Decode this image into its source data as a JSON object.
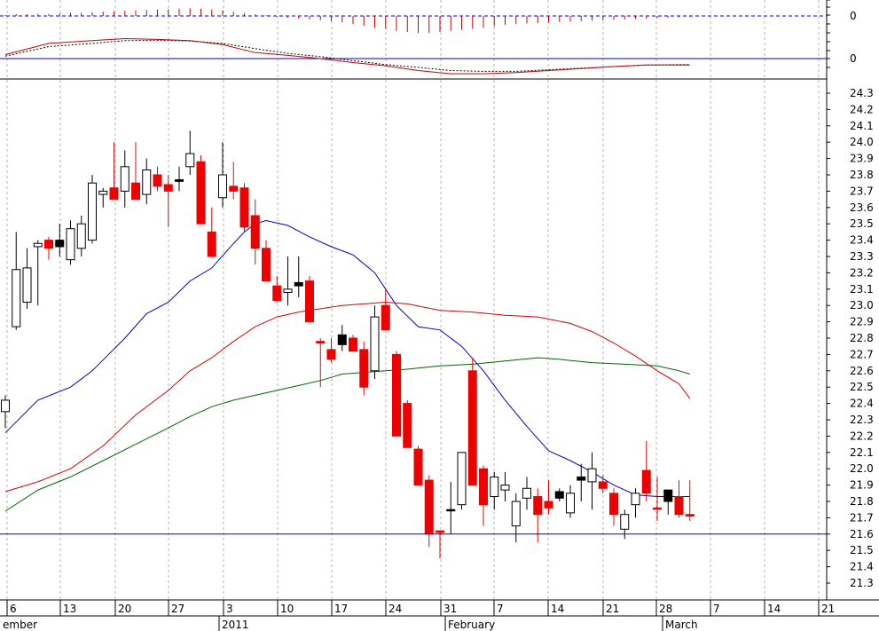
{
  "chart_data": {
    "type": "candlestick",
    "price_axis": {
      "ylim": [
        21.22,
        24.33
      ],
      "ticks": [
        21.3,
        21.4,
        21.5,
        21.6,
        21.7,
        21.8,
        21.9,
        22.0,
        22.1,
        22.2,
        22.3,
        22.4,
        22.5,
        22.6,
        22.7,
        22.8,
        22.9,
        23.0,
        23.1,
        23.2,
        23.3,
        23.4,
        23.5,
        23.6,
        23.7,
        23.8,
        23.9,
        24.0,
        24.1,
        24.2,
        24.3
      ],
      "reference_line": 21.6
    },
    "indicator_panel": {
      "labels": [
        "0",
        "0"
      ],
      "zero_line": 0
    },
    "x_axis": {
      "day_ticks": [
        "6",
        "13",
        "20",
        "27",
        "3",
        "10",
        "17",
        "24",
        "31",
        "7",
        "14",
        "21",
        "28",
        "7",
        "14",
        "21"
      ],
      "period_labels": [
        "ember",
        "2011",
        "February",
        "March"
      ]
    },
    "candles": [
      {
        "o": 22.35,
        "h": 22.45,
        "l": 22.25,
        "c": 22.42,
        "color": "white"
      },
      {
        "o": 22.87,
        "h": 23.45,
        "l": 22.85,
        "c": 23.22,
        "color": "white"
      },
      {
        "o": 23.02,
        "h": 23.35,
        "l": 22.98,
        "c": 23.23,
        "color": "white"
      },
      {
        "o": 23.36,
        "h": 23.4,
        "l": 23.0,
        "c": 23.38,
        "color": "white"
      },
      {
        "o": 23.4,
        "h": 23.42,
        "l": 23.28,
        "c": 23.35,
        "color": "red"
      },
      {
        "o": 23.36,
        "h": 23.5,
        "l": 23.3,
        "c": 23.4,
        "color": "black"
      },
      {
        "o": 23.28,
        "h": 23.52,
        "l": 23.25,
        "c": 23.47,
        "color": "white"
      },
      {
        "o": 23.35,
        "h": 23.55,
        "l": 23.3,
        "c": 23.5,
        "color": "white"
      },
      {
        "o": 23.4,
        "h": 23.8,
        "l": 23.38,
        "c": 23.75,
        "color": "white"
      },
      {
        "o": 23.68,
        "h": 23.72,
        "l": 23.6,
        "c": 23.7,
        "color": "white"
      },
      {
        "o": 23.72,
        "h": 24.0,
        "l": 23.65,
        "c": 23.65,
        "color": "red"
      },
      {
        "o": 23.7,
        "h": 23.95,
        "l": 23.6,
        "c": 23.85,
        "color": "white"
      },
      {
        "o": 23.75,
        "h": 24.0,
        "l": 23.65,
        "c": 23.65,
        "color": "red"
      },
      {
        "o": 23.68,
        "h": 23.9,
        "l": 23.62,
        "c": 23.83,
        "color": "white"
      },
      {
        "o": 23.8,
        "h": 23.85,
        "l": 23.7,
        "c": 23.73,
        "color": "red"
      },
      {
        "o": 23.74,
        "h": 23.8,
        "l": 23.48,
        "c": 23.7,
        "color": "red"
      },
      {
        "o": 23.77,
        "h": 23.85,
        "l": 23.7,
        "c": 23.76,
        "color": "black"
      },
      {
        "o": 23.85,
        "h": 24.07,
        "l": 23.8,
        "c": 23.93,
        "color": "white"
      },
      {
        "o": 23.88,
        "h": 23.92,
        "l": 23.5,
        "c": 23.5,
        "color": "red"
      },
      {
        "o": 23.45,
        "h": 23.6,
        "l": 23.3,
        "c": 23.3,
        "color": "red"
      },
      {
        "o": 23.66,
        "h": 24.0,
        "l": 23.6,
        "c": 23.8,
        "color": "white"
      },
      {
        "o": 23.73,
        "h": 23.88,
        "l": 23.65,
        "c": 23.7,
        "color": "red"
      },
      {
        "o": 23.72,
        "h": 23.75,
        "l": 23.45,
        "c": 23.48,
        "color": "red"
      },
      {
        "o": 23.55,
        "h": 23.65,
        "l": 23.25,
        "c": 23.35,
        "color": "red"
      },
      {
        "o": 23.35,
        "h": 23.4,
        "l": 23.15,
        "c": 23.15,
        "color": "red"
      },
      {
        "o": 23.12,
        "h": 23.18,
        "l": 23.02,
        "c": 23.03,
        "color": "red"
      },
      {
        "o": 23.1,
        "h": 23.3,
        "l": 23.0,
        "c": 23.08,
        "color": "white"
      },
      {
        "o": 23.12,
        "h": 23.3,
        "l": 23.05,
        "c": 23.14,
        "color": "black"
      },
      {
        "o": 23.15,
        "h": 23.18,
        "l": 22.9,
        "c": 22.9,
        "color": "red"
      },
      {
        "o": 22.78,
        "h": 22.8,
        "l": 22.5,
        "c": 22.77,
        "color": "red"
      },
      {
        "o": 22.73,
        "h": 22.8,
        "l": 22.65,
        "c": 22.67,
        "color": "red"
      },
      {
        "o": 22.76,
        "h": 22.88,
        "l": 22.72,
        "c": 22.82,
        "color": "black"
      },
      {
        "o": 22.8,
        "h": 22.82,
        "l": 22.72,
        "c": 22.72,
        "color": "red"
      },
      {
        "o": 22.73,
        "h": 22.78,
        "l": 22.45,
        "c": 22.5,
        "color": "red"
      },
      {
        "o": 22.6,
        "h": 23.0,
        "l": 22.55,
        "c": 22.93,
        "color": "white"
      },
      {
        "o": 23.0,
        "h": 23.1,
        "l": 22.85,
        "c": 22.85,
        "color": "red"
      },
      {
        "o": 22.7,
        "h": 22.72,
        "l": 22.2,
        "c": 22.2,
        "color": "red"
      },
      {
        "o": 22.4,
        "h": 22.42,
        "l": 22.13,
        "c": 22.13,
        "color": "red"
      },
      {
        "o": 22.12,
        "h": 22.14,
        "l": 21.9,
        "c": 21.9,
        "color": "red"
      },
      {
        "o": 21.93,
        "h": 21.96,
        "l": 21.52,
        "c": 21.6,
        "color": "red"
      },
      {
        "o": 21.62,
        "h": 21.62,
        "l": 21.45,
        "c": 21.61,
        "color": "red"
      },
      {
        "o": 21.75,
        "h": 21.92,
        "l": 21.6,
        "c": 21.75,
        "color": "black"
      },
      {
        "o": 21.78,
        "h": 22.1,
        "l": 21.75,
        "c": 22.1,
        "color": "white"
      },
      {
        "o": 22.6,
        "h": 22.68,
        "l": 21.9,
        "c": 21.9,
        "color": "red"
      },
      {
        "o": 22.0,
        "h": 22.02,
        "l": 21.65,
        "c": 21.78,
        "color": "red"
      },
      {
        "o": 21.83,
        "h": 21.98,
        "l": 21.75,
        "c": 21.95,
        "color": "white"
      },
      {
        "o": 21.9,
        "h": 21.98,
        "l": 21.8,
        "c": 21.87,
        "color": "white"
      },
      {
        "o": 21.65,
        "h": 21.85,
        "l": 21.55,
        "c": 21.8,
        "color": "white"
      },
      {
        "o": 21.82,
        "h": 21.95,
        "l": 21.75,
        "c": 21.88,
        "color": "white"
      },
      {
        "o": 21.83,
        "h": 21.88,
        "l": 21.55,
        "c": 21.72,
        "color": "red"
      },
      {
        "o": 21.76,
        "h": 21.93,
        "l": 21.72,
        "c": 21.8,
        "color": "red"
      },
      {
        "o": 21.82,
        "h": 21.88,
        "l": 21.8,
        "c": 21.86,
        "color": "black"
      },
      {
        "o": 21.73,
        "h": 21.9,
        "l": 21.7,
        "c": 21.85,
        "color": "white"
      },
      {
        "o": 21.95,
        "h": 22.03,
        "l": 21.8,
        "c": 21.93,
        "color": "black"
      },
      {
        "o": 21.92,
        "h": 22.1,
        "l": 21.75,
        "c": 22.0,
        "color": "white"
      },
      {
        "o": 21.92,
        "h": 21.96,
        "l": 21.85,
        "c": 21.88,
        "color": "red"
      },
      {
        "o": 21.85,
        "h": 21.88,
        "l": 21.65,
        "c": 21.72,
        "color": "red"
      },
      {
        "o": 21.63,
        "h": 21.75,
        "l": 21.57,
        "c": 21.72,
        "color": "white"
      },
      {
        "o": 21.78,
        "h": 21.88,
        "l": 21.7,
        "c": 21.85,
        "color": "white"
      },
      {
        "o": 21.99,
        "h": 22.17,
        "l": 21.8,
        "c": 21.85,
        "color": "red"
      },
      {
        "o": 21.76,
        "h": 21.95,
        "l": 21.68,
        "c": 21.76,
        "color": "red"
      },
      {
        "o": 21.8,
        "h": 21.87,
        "l": 21.72,
        "c": 21.87,
        "color": "black"
      },
      {
        "o": 21.83,
        "h": 21.93,
        "l": 21.7,
        "c": 21.72,
        "color": "red"
      },
      {
        "o": 21.72,
        "h": 21.93,
        "l": 21.68,
        "c": 21.71,
        "color": "red"
      }
    ],
    "moving_averages": [
      {
        "color": "#0000cc",
        "values": [
          [
            0,
            22.22
          ],
          [
            3,
            22.42
          ],
          [
            6,
            22.5
          ],
          [
            8,
            22.6
          ],
          [
            11,
            22.8
          ],
          [
            13,
            22.95
          ],
          [
            15,
            23.02
          ],
          [
            17,
            23.15
          ],
          [
            19,
            23.23
          ],
          [
            21,
            23.38
          ],
          [
            22,
            23.45
          ],
          [
            23,
            23.5
          ],
          [
            24,
            23.52
          ],
          [
            26,
            23.49
          ],
          [
            28,
            23.42
          ],
          [
            30,
            23.36
          ],
          [
            32,
            23.31
          ],
          [
            34,
            23.2
          ],
          [
            36,
            23.0
          ],
          [
            38,
            22.87
          ],
          [
            40,
            22.85
          ],
          [
            42,
            22.75
          ],
          [
            44,
            22.6
          ],
          [
            46,
            22.42
          ],
          [
            48,
            22.26
          ],
          [
            50,
            22.11
          ],
          [
            52,
            22.05
          ],
          [
            54,
            21.98
          ],
          [
            56,
            21.9
          ],
          [
            58,
            21.84
          ],
          [
            60,
            21.83
          ],
          [
            62,
            21.83
          ],
          [
            63,
            21.83
          ]
        ]
      },
      {
        "color": "#dd0000",
        "values": [
          [
            0,
            21.86
          ],
          [
            3,
            21.92
          ],
          [
            6,
            22.0
          ],
          [
            9,
            22.14
          ],
          [
            12,
            22.33
          ],
          [
            15,
            22.48
          ],
          [
            17,
            22.6
          ],
          [
            19,
            22.68
          ],
          [
            21,
            22.78
          ],
          [
            23,
            22.87
          ],
          [
            25,
            22.93
          ],
          [
            27,
            22.96
          ],
          [
            29,
            22.98
          ],
          [
            31,
            23.0
          ],
          [
            33,
            23.01
          ],
          [
            35,
            23.02
          ],
          [
            37,
            23.01
          ],
          [
            40,
            22.97
          ],
          [
            43,
            22.96
          ],
          [
            46,
            22.94
          ],
          [
            49,
            22.93
          ],
          [
            52,
            22.89
          ],
          [
            54,
            22.84
          ],
          [
            56,
            22.77
          ],
          [
            58,
            22.69
          ],
          [
            60,
            22.6
          ],
          [
            62,
            22.52
          ],
          [
            63,
            22.43
          ]
        ]
      },
      {
        "color": "#006600",
        "values": [
          [
            0,
            21.74
          ],
          [
            3,
            21.87
          ],
          [
            6,
            21.95
          ],
          [
            9,
            22.05
          ],
          [
            12,
            22.15
          ],
          [
            15,
            22.25
          ],
          [
            17,
            22.32
          ],
          [
            19,
            22.38
          ],
          [
            21,
            22.42
          ],
          [
            23,
            22.45
          ],
          [
            25,
            22.48
          ],
          [
            27,
            22.51
          ],
          [
            29,
            22.54
          ],
          [
            31,
            22.58
          ],
          [
            33,
            22.59
          ],
          [
            35,
            22.6
          ],
          [
            37,
            22.61
          ],
          [
            40,
            22.63
          ],
          [
            43,
            22.64
          ],
          [
            46,
            22.66
          ],
          [
            49,
            22.68
          ],
          [
            51,
            22.67
          ],
          [
            54,
            22.65
          ],
          [
            57,
            22.64
          ],
          [
            60,
            22.63
          ],
          [
            62,
            22.6
          ],
          [
            63,
            22.58
          ]
        ]
      }
    ],
    "macd": {
      "line_color": "#cc0000",
      "signal_color": "#000000",
      "zero_color": "#0000cc",
      "line": [
        [
          0,
          0.1
        ],
        [
          4,
          0.38
        ],
        [
          8,
          0.45
        ],
        [
          11,
          0.5
        ],
        [
          14,
          0.48
        ],
        [
          17,
          0.45
        ],
        [
          20,
          0.35
        ],
        [
          23,
          0.15
        ],
        [
          26,
          0.08
        ],
        [
          29,
          0.0
        ],
        [
          32,
          -0.1
        ],
        [
          35,
          -0.18
        ],
        [
          38,
          -0.3
        ],
        [
          41,
          -0.38
        ],
        [
          44,
          -0.38
        ],
        [
          47,
          -0.35
        ],
        [
          50,
          -0.3
        ],
        [
          53,
          -0.25
        ],
        [
          56,
          -0.2
        ],
        [
          59,
          -0.16
        ],
        [
          62,
          -0.16
        ],
        [
          63,
          -0.16
        ]
      ],
      "signal": [
        [
          0,
          0.06
        ],
        [
          4,
          0.3
        ],
        [
          8,
          0.38
        ],
        [
          11,
          0.45
        ],
        [
          14,
          0.46
        ],
        [
          17,
          0.44
        ],
        [
          20,
          0.38
        ],
        [
          23,
          0.25
        ],
        [
          26,
          0.13
        ],
        [
          29,
          0.05
        ],
        [
          32,
          -0.05
        ],
        [
          35,
          -0.15
        ],
        [
          38,
          -0.22
        ],
        [
          41,
          -0.3
        ],
        [
          44,
          -0.32
        ],
        [
          47,
          -0.32
        ],
        [
          50,
          -0.28
        ],
        [
          53,
          -0.24
        ],
        [
          56,
          -0.2
        ],
        [
          59,
          -0.16
        ],
        [
          62,
          -0.15
        ],
        [
          63,
          -0.15
        ]
      ],
      "histogram_color": "#cc0000",
      "histogram": [
        0.05,
        0.08,
        0.08,
        0.1,
        0.1,
        0.12,
        0.15,
        0.15,
        0.18,
        0.2,
        0.22,
        0.24,
        0.26,
        0.28,
        0.3,
        0.32,
        0.35,
        0.36,
        0.34,
        0.3,
        0.26,
        0.2,
        0.14,
        0.08,
        0.03,
        -0.03,
        -0.08,
        -0.12,
        -0.15,
        -0.2,
        -0.25,
        -0.3,
        -0.38,
        -0.45,
        -0.55,
        -0.6,
        -0.7,
        -0.75,
        -0.8,
        -0.8,
        -0.75,
        -0.7,
        -0.65,
        -0.6,
        -0.55,
        -0.48,
        -0.42,
        -0.38,
        -0.35,
        -0.33,
        -0.3,
        -0.28,
        -0.26,
        -0.24,
        -0.22,
        -0.2,
        -0.18,
        -0.16,
        -0.14,
        -0.12,
        -0.1,
        -0.08,
        -0.06,
        -0.05
      ]
    }
  }
}
